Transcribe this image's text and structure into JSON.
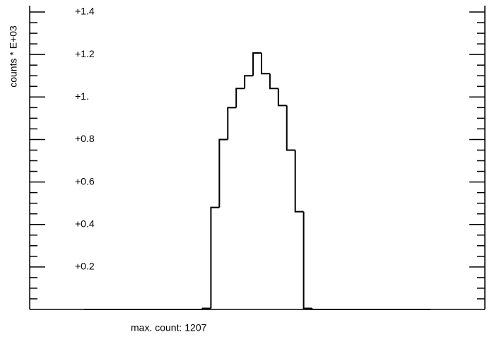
{
  "chart_data": {
    "type": "histogram",
    "ylabel": "counts * E+03",
    "footer": "max. count:  1207",
    "bins": [
      0,
      1,
      2,
      3,
      4,
      5,
      6,
      7,
      8,
      9,
      10,
      11,
      12,
      13,
      14,
      15,
      16,
      17,
      18,
      19,
      20,
      21,
      22,
      23,
      24,
      25,
      26,
      27,
      28,
      29,
      30,
      31,
      32,
      33,
      34,
      35,
      36,
      37,
      38,
      39,
      40,
      41
    ],
    "values": [
      0,
      0,
      0,
      0,
      0,
      0,
      0,
      0,
      0,
      0,
      0,
      0,
      0,
      0,
      0.005,
      0.48,
      0.8,
      0.95,
      1.04,
      1.1,
      1.207,
      1.11,
      1.04,
      0.96,
      0.75,
      0.46,
      0.005,
      0,
      0,
      0,
      0,
      0,
      0,
      0,
      0,
      0,
      0,
      0,
      0,
      0,
      0
    ],
    "color": "#000000",
    "xlim": [
      -6.5,
      47.5
    ],
    "ylim": [
      0,
      1.43
    ],
    "yticks": [
      {
        "value": 0.2,
        "label": "+0.2"
      },
      {
        "value": 0.4,
        "label": "+0.4"
      },
      {
        "value": 0.6,
        "label": "+0.6"
      },
      {
        "value": 0.8,
        "label": "+0.8"
      },
      {
        "value": 1.0,
        "label": "+1."
      },
      {
        "value": 1.2,
        "label": "+1.2"
      },
      {
        "value": 1.4,
        "label": "+1.4"
      }
    ],
    "yminorticks": [
      0.05,
      0.1,
      0.15,
      0.25,
      0.3,
      0.35,
      0.45,
      0.5,
      0.55,
      0.65,
      0.7,
      0.75,
      0.85,
      0.9,
      0.95,
      1.05,
      1.1,
      1.15,
      1.25,
      1.3,
      1.35
    ]
  }
}
